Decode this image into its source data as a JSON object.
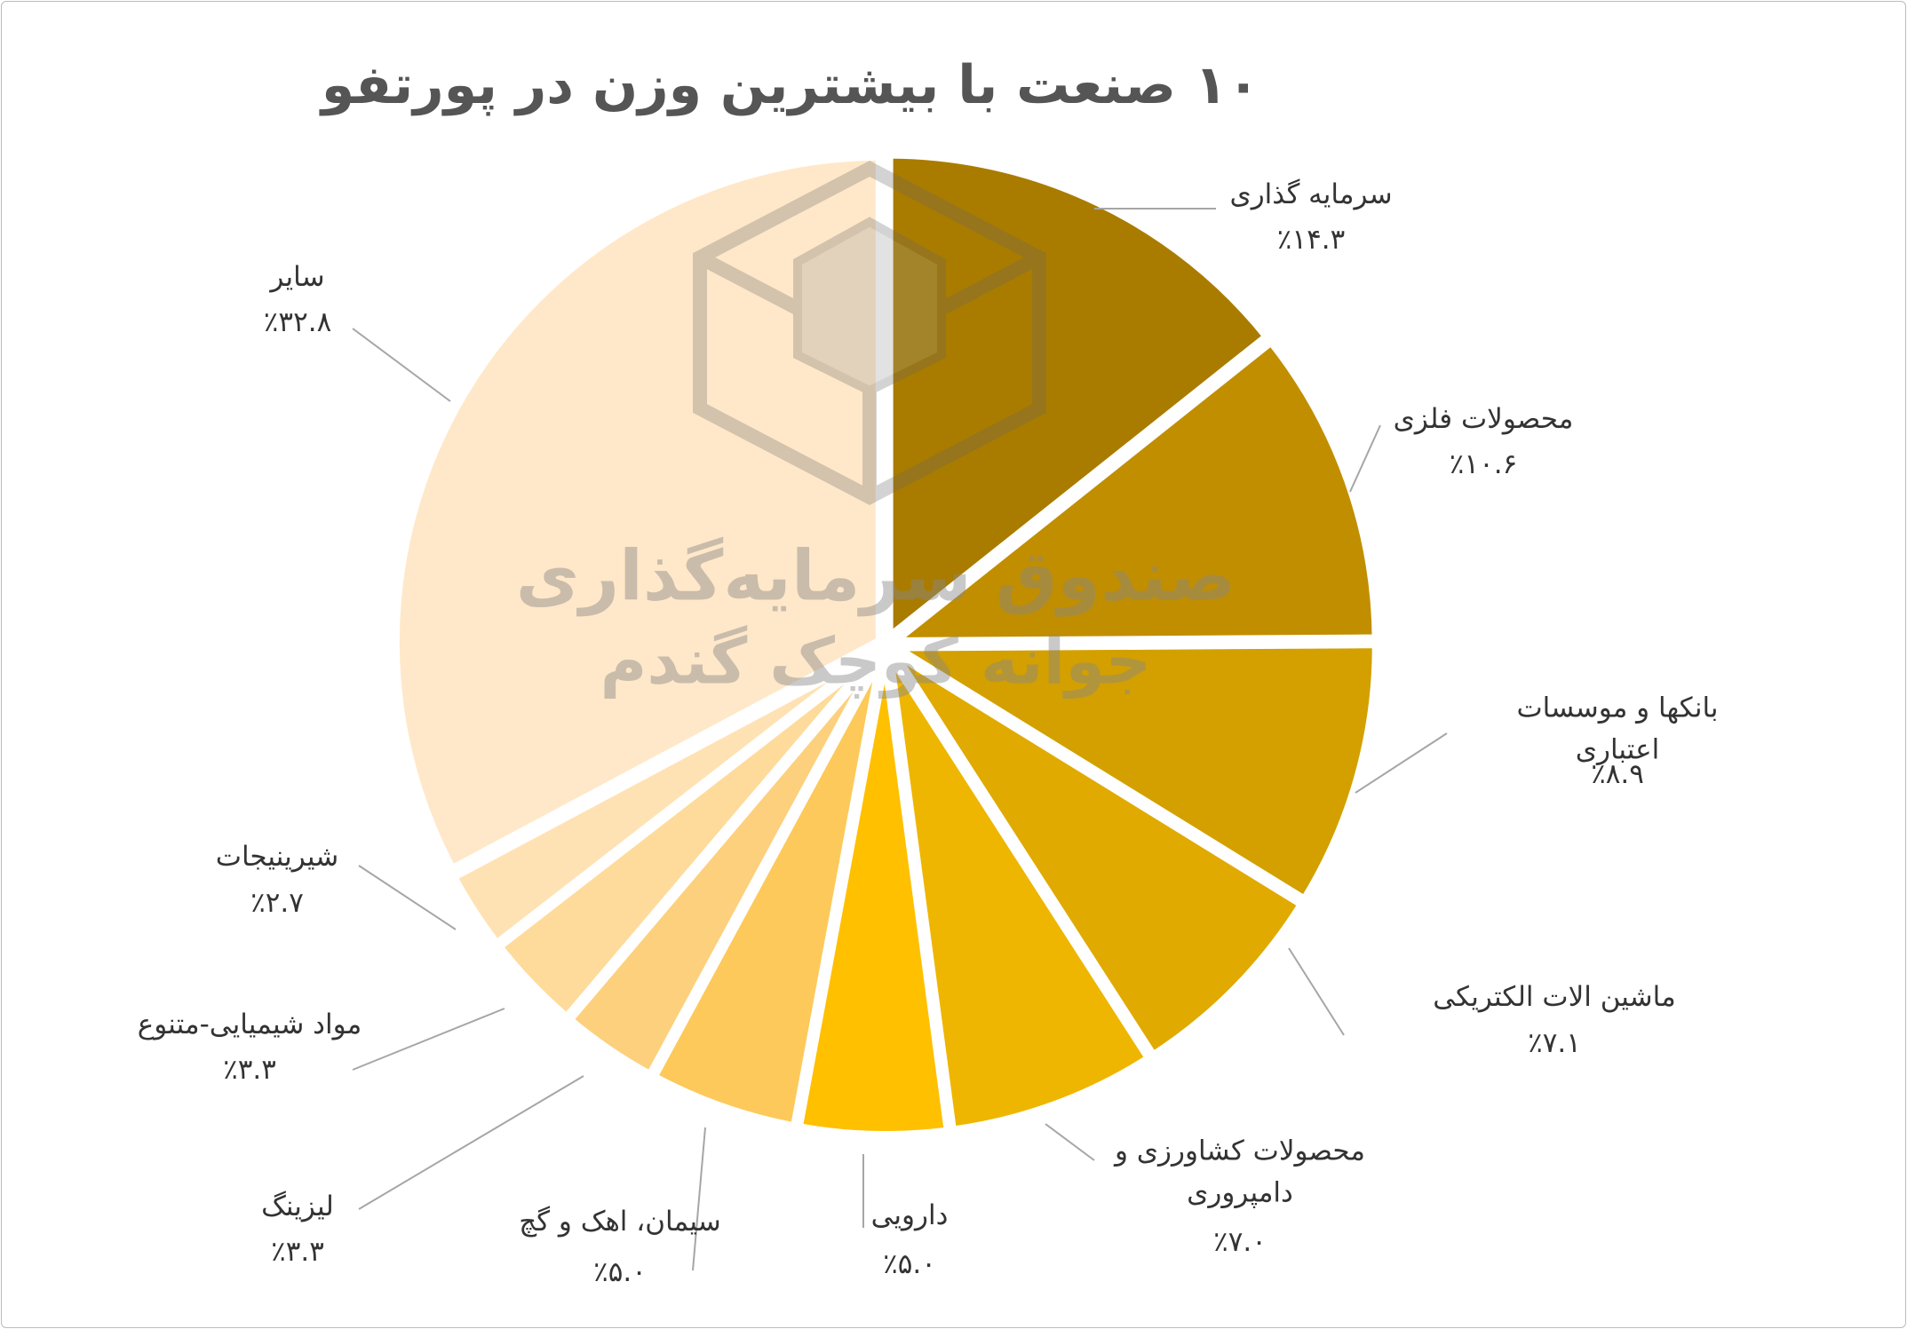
{
  "chart_data": {
    "type": "pie",
    "title": "۱۰ صنعت با بیشترین وزن در پورتفو",
    "categories": [
      "سرمایه گذاری",
      "محصولات فلزی",
      "بانکها و موسسات اعتباری",
      "ماشین الات الکتریکی",
      "محصولات کشاورزی و\nدامپروری",
      "دارویی",
      "سیمان، اهک و گچ",
      "لیزینگ",
      "مواد شیمیایی-متنوع",
      "شیرینیجات",
      "سایر"
    ],
    "values": [
      14.3,
      10.6,
      8.9,
      7.1,
      7.0,
      5.0,
      5.0,
      3.3,
      3.3,
      2.7,
      32.8
    ],
    "value_labels": [
      "٪۱۴.۳",
      "٪۱۰.۶",
      "٪۸.۹",
      "٪۷.۱",
      "٪۷.۰",
      "٪۵.۰",
      "٪۵.۰",
      "٪۳.۳",
      "٪۳.۳",
      "٪۲.۷",
      "٪۳۲.۸"
    ],
    "colors": [
      "#a97c00",
      "#c18e00",
      "#d3a000",
      "#e0aa00",
      "#eeb600",
      "#ffc000",
      "#fdc95a",
      "#fdd07d",
      "#fedb9a",
      "#ffe2b4",
      "#ffe8c9"
    ],
    "watermark": [
      "صندوق سرمایه‌گذاری",
      "جوانه کوچک گندم"
    ]
  }
}
